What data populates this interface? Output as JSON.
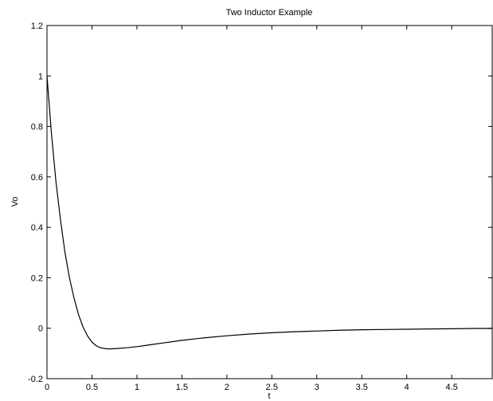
{
  "chart_data": {
    "type": "line",
    "title": "Two Inductor Example",
    "xlabel": "t",
    "ylabel": "Vo",
    "xlim": [
      0,
      4.95
    ],
    "ylim": [
      -0.2,
      1.2
    ],
    "xticks": [
      0,
      0.5,
      1,
      1.5,
      2,
      2.5,
      3,
      3.5,
      4,
      4.5
    ],
    "xtick_labels": [
      "0",
      "0.5",
      "1",
      "1.5",
      "2",
      "2.5",
      "3",
      "3.5",
      "4",
      "4.5"
    ],
    "yticks": [
      -0.2,
      0,
      0.2,
      0.4,
      0.6,
      0.8,
      1,
      1.2
    ],
    "ytick_labels": [
      "-0.2",
      "0",
      "0.2",
      "0.4",
      "0.6",
      "0.8",
      "1",
      "1.2"
    ],
    "grid": false,
    "line_color": "#000000",
    "series": [
      {
        "x": [
          0,
          0.05,
          0.1,
          0.15,
          0.2,
          0.25,
          0.3,
          0.35,
          0.4,
          0.45,
          0.5,
          0.55,
          0.6,
          0.65,
          0.7,
          0.75,
          0.8,
          0.9,
          1.0,
          1.1,
          1.2,
          1.3,
          1.4,
          1.5,
          1.75,
          2.0,
          2.25,
          2.5,
          2.75,
          3.0,
          3.25,
          3.5,
          3.75,
          4.0,
          4.25,
          4.5,
          4.75,
          4.95
        ],
        "values": [
          1.0,
          0.77,
          0.58,
          0.43,
          0.3,
          0.2,
          0.12,
          0.055,
          0.005,
          -0.03,
          -0.055,
          -0.07,
          -0.078,
          -0.081,
          -0.082,
          -0.081,
          -0.08,
          -0.077,
          -0.073,
          -0.068,
          -0.063,
          -0.058,
          -0.053,
          -0.048,
          -0.038,
          -0.03,
          -0.023,
          -0.018,
          -0.014,
          -0.011,
          -0.008,
          -0.006,
          -0.005,
          -0.004,
          -0.003,
          -0.002,
          -0.001,
          -0.001
        ]
      }
    ]
  }
}
